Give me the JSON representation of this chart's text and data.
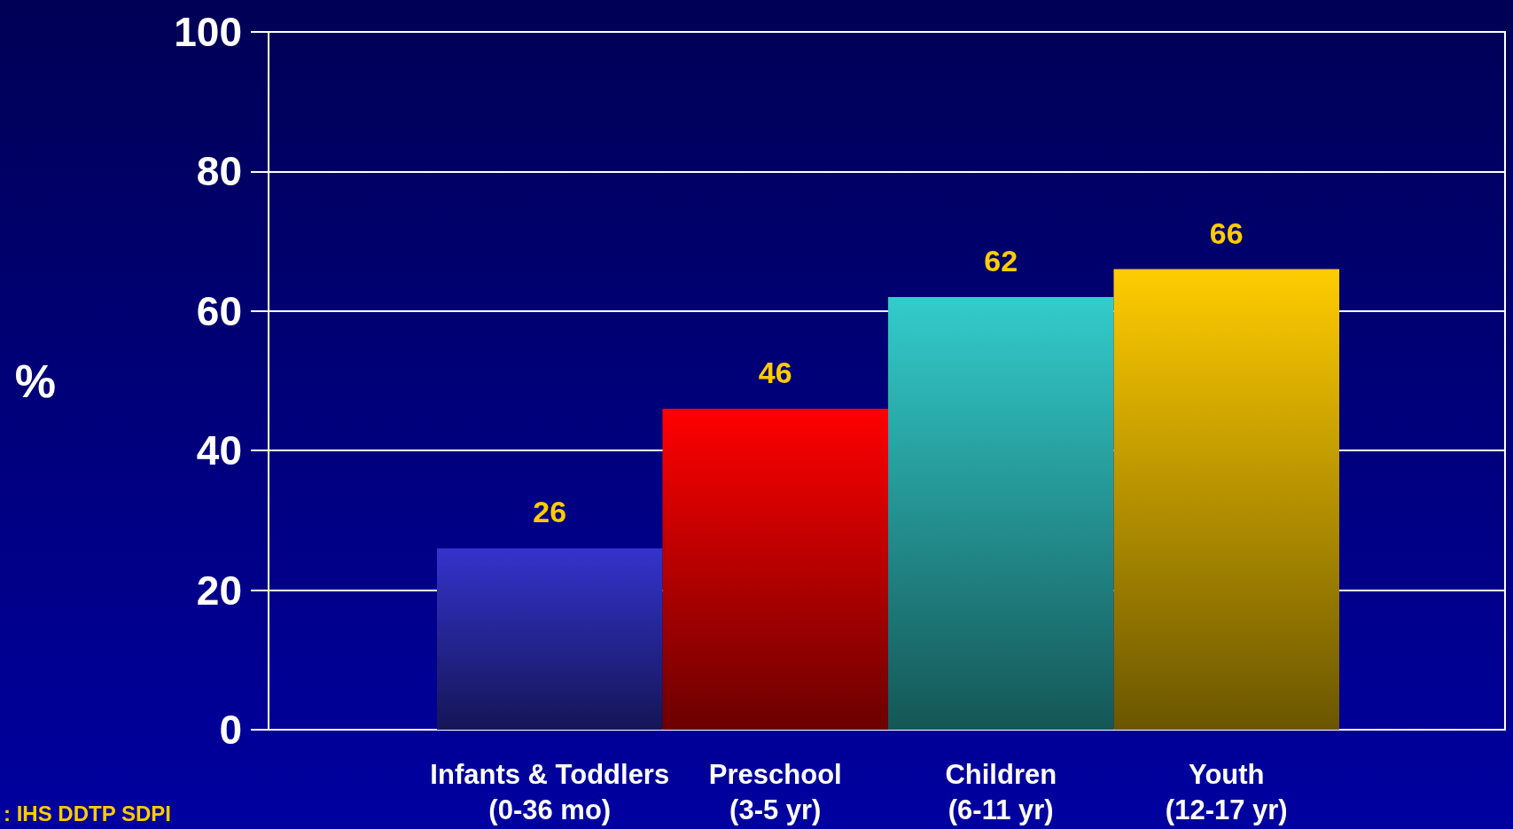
{
  "chart_data": {
    "type": "bar",
    "ylabel": "%",
    "categories": [
      "Infants & Toddlers\n(0-36 mo)",
      "Preschool\n(3-5 yr)",
      "Children\n(6-11 yr)",
      "Youth\n(12-17 yr)"
    ],
    "values": [
      26,
      46,
      62,
      66
    ],
    "colors": [
      "#3333cc",
      "#ff0000",
      "#33cccc",
      "#ffcc00"
    ],
    "ylim": [
      0,
      100
    ],
    "yticks": [
      0,
      20,
      40,
      60,
      80,
      100
    ],
    "grid": "y",
    "data_labels": true,
    "annotations": [
      ": IHS DDTP SDPI"
    ]
  }
}
